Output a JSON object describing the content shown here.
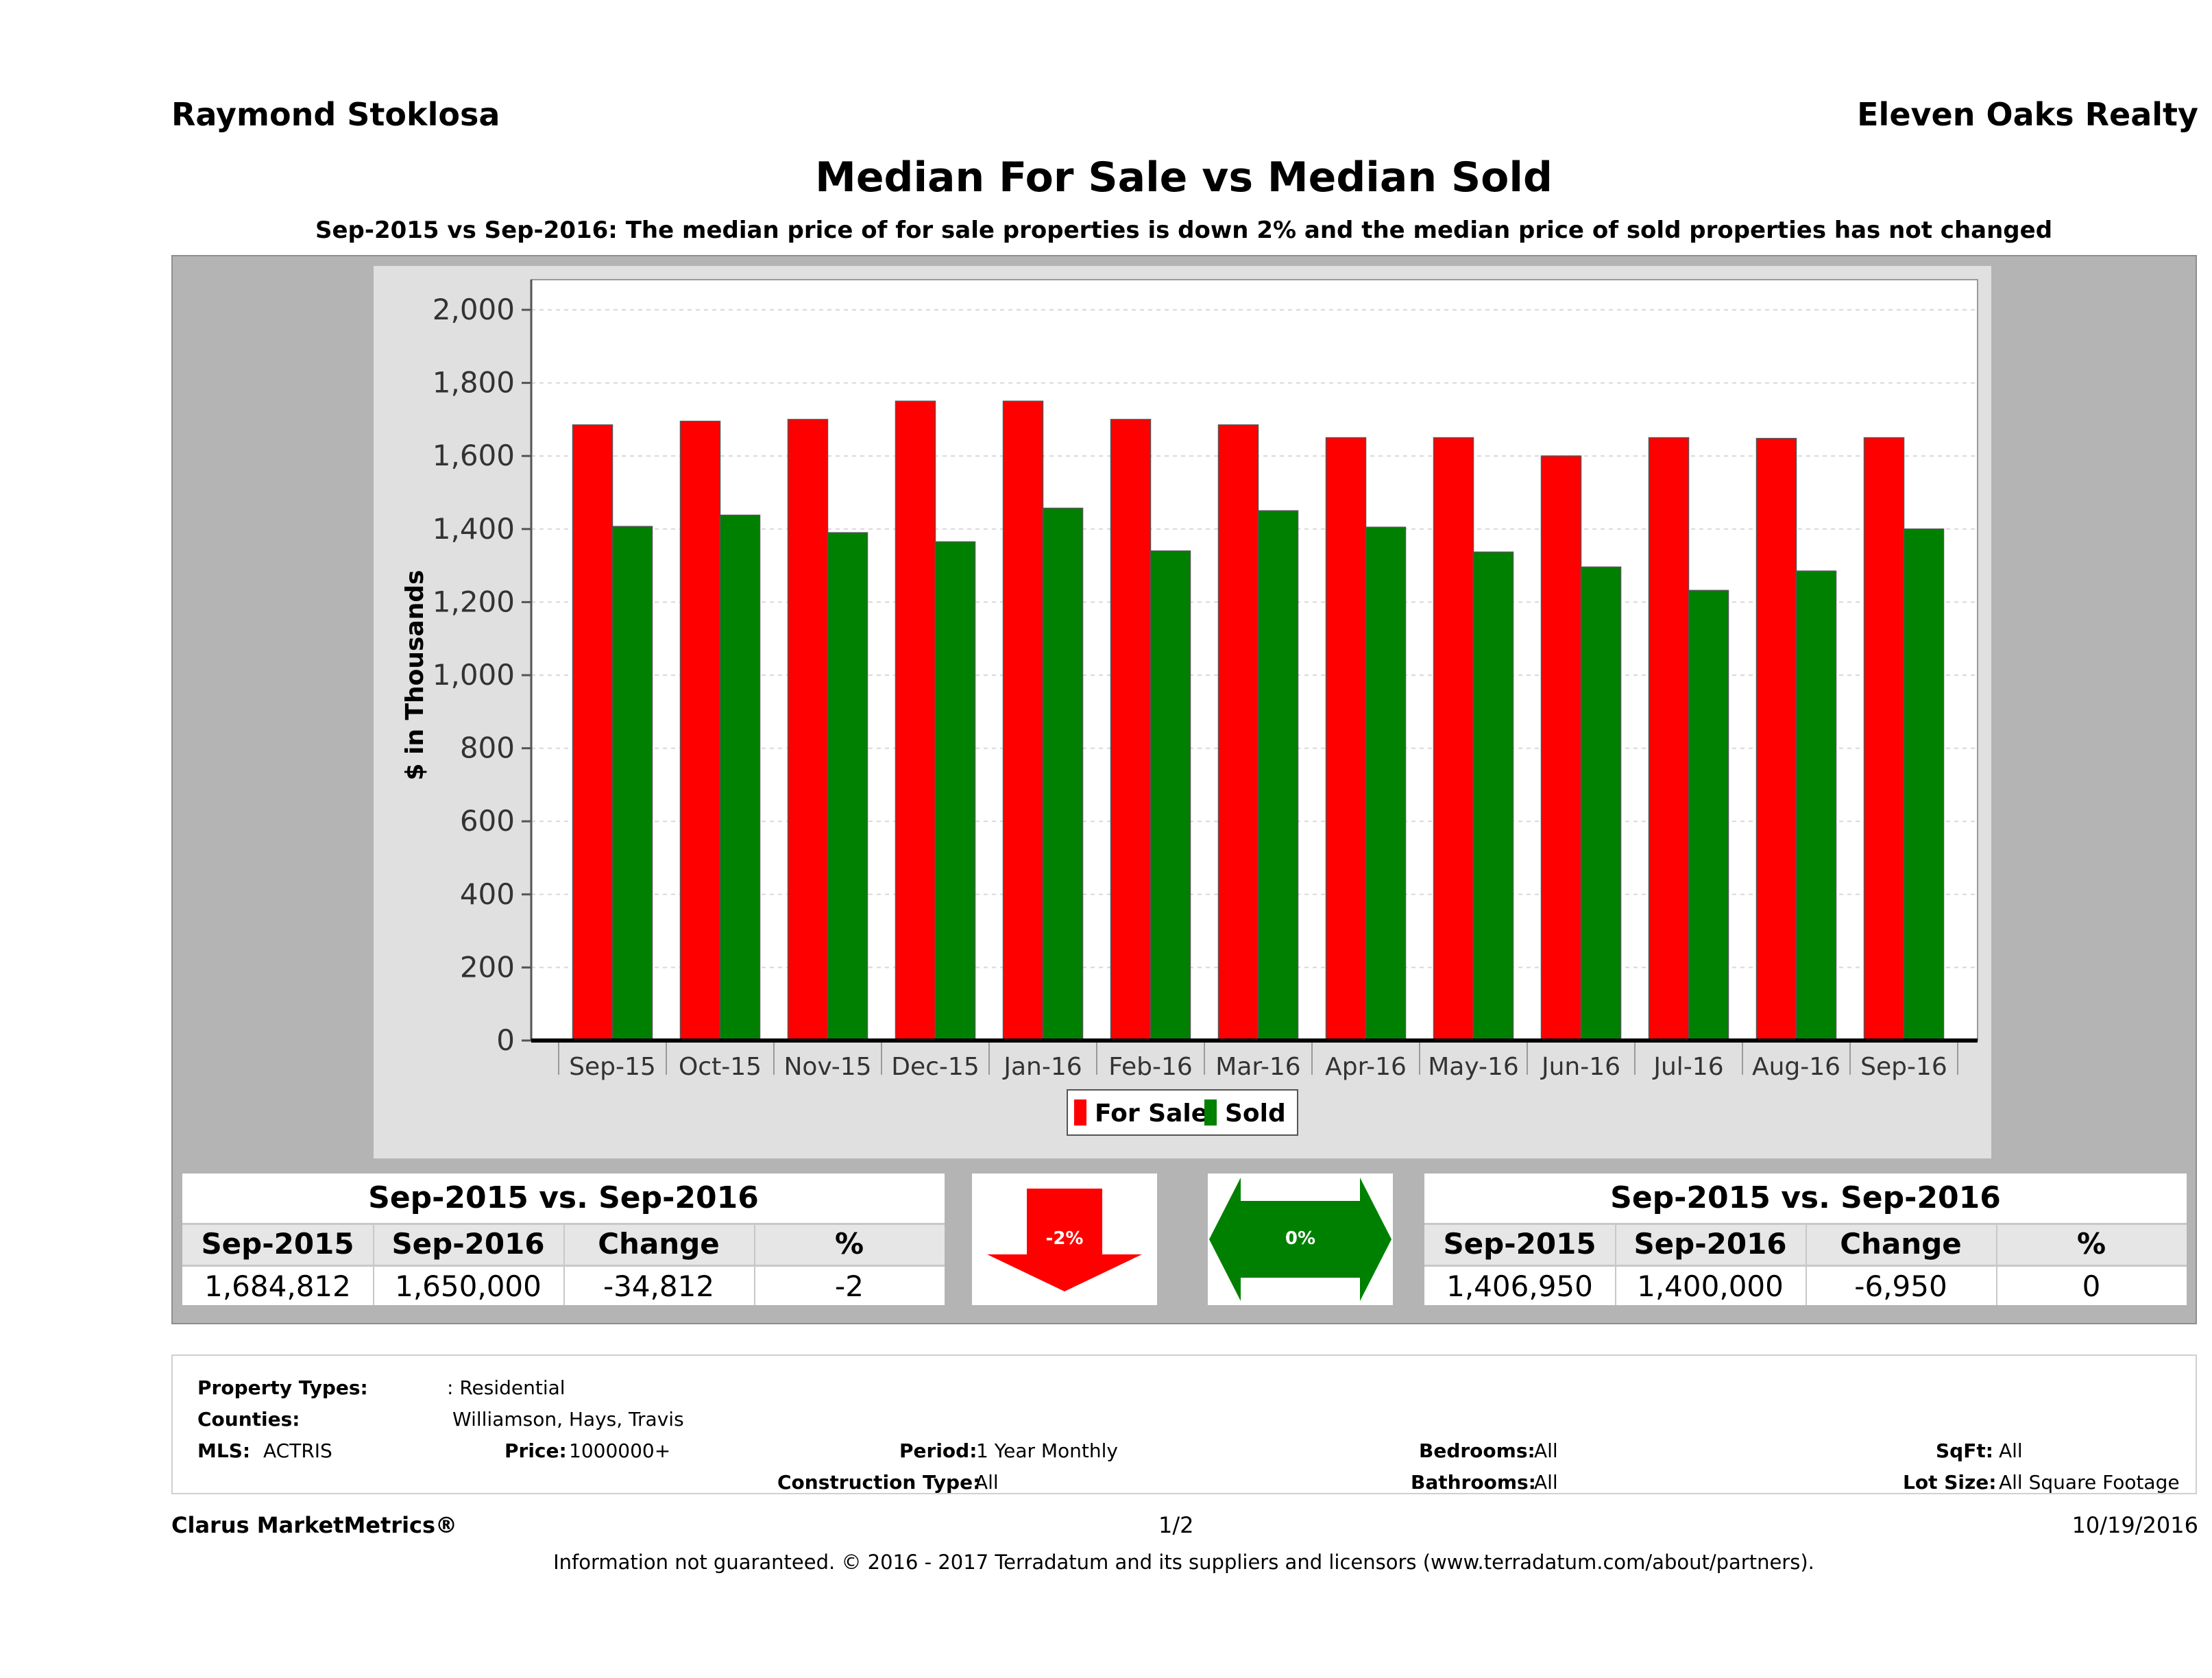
{
  "header": {
    "left": "Raymond Stoklosa",
    "right": "Eleven Oaks Realty"
  },
  "title": "Median For Sale vs Median Sold",
  "subtitle": "Sep-2015 vs Sep-2016: The median price of for sale properties is down 2% and the median price of sold properties has not changed",
  "chart_data": {
    "type": "bar",
    "ylabel": "$ in Thousands",
    "ylim": [
      0,
      2000
    ],
    "yticks": [
      "0",
      "200",
      "400",
      "600",
      "800",
      "1,000",
      "1,200",
      "1,400",
      "1,600",
      "1,800",
      "2,000"
    ],
    "categories": [
      "Sep-15",
      "Oct-15",
      "Nov-15",
      "Dec-15",
      "Jan-16",
      "Feb-16",
      "Mar-16",
      "Apr-16",
      "May-16",
      "Jun-16",
      "Jul-16",
      "Aug-16",
      "Sep-16"
    ],
    "series": [
      {
        "name": "For Sale",
        "color": "#ff0000",
        "values": [
          1685,
          1695,
          1700,
          1750,
          1750,
          1700,
          1685,
          1650,
          1650,
          1600,
          1650,
          1648,
          1650
        ]
      },
      {
        "name": "Sold",
        "color": "#008000",
        "values": [
          1407,
          1438,
          1390,
          1365,
          1457,
          1340,
          1450,
          1405,
          1337,
          1296,
          1232,
          1285,
          1400
        ]
      }
    ],
    "legend_position": "bottom",
    "grid": true
  },
  "stats_left": {
    "heading": "Sep-2015 vs. Sep-2016",
    "columns": [
      "Sep-2015",
      "Sep-2016",
      "Change",
      "%"
    ],
    "values": [
      "1,684,812",
      "1,650,000",
      "-34,812",
      "-2"
    ],
    "indicator": "-2%",
    "indicator_color": "#ff0000"
  },
  "stats_right": {
    "heading": "Sep-2015 vs. Sep-2016",
    "columns": [
      "Sep-2015",
      "Sep-2016",
      "Change",
      "%"
    ],
    "values": [
      "1,406,950",
      "1,400,000",
      "-6,950",
      "0"
    ],
    "indicator": "0%",
    "indicator_color": "#008000"
  },
  "criteria": {
    "property_types_label": "Property Types:",
    "property_types": ": Residential",
    "counties_label": "Counties:",
    "counties": "Williamson, Hays, Travis",
    "mls_label": "MLS:",
    "mls": "ACTRIS",
    "price_label": "Price:",
    "price": "1000000+",
    "period_label": "Period:",
    "period": "1 Year Monthly",
    "construction_label": "Construction Type:",
    "construction": "All",
    "bedrooms_label": "Bedrooms:",
    "bedrooms": "All",
    "bathrooms_label": "Bathrooms:",
    "bathrooms": "All",
    "sqft_label": "SqFt:",
    "sqft": "All",
    "lot_label": "Lot Size:",
    "lot": "All Square Footage"
  },
  "footer": {
    "brand": "Clarus MarketMetrics®",
    "page": "1/2",
    "date": "10/19/2016",
    "disclaimer": "Information not guaranteed. © 2016 - 2017 Terradatum and its suppliers and licensors (www.terradatum.com/about/partners)."
  }
}
